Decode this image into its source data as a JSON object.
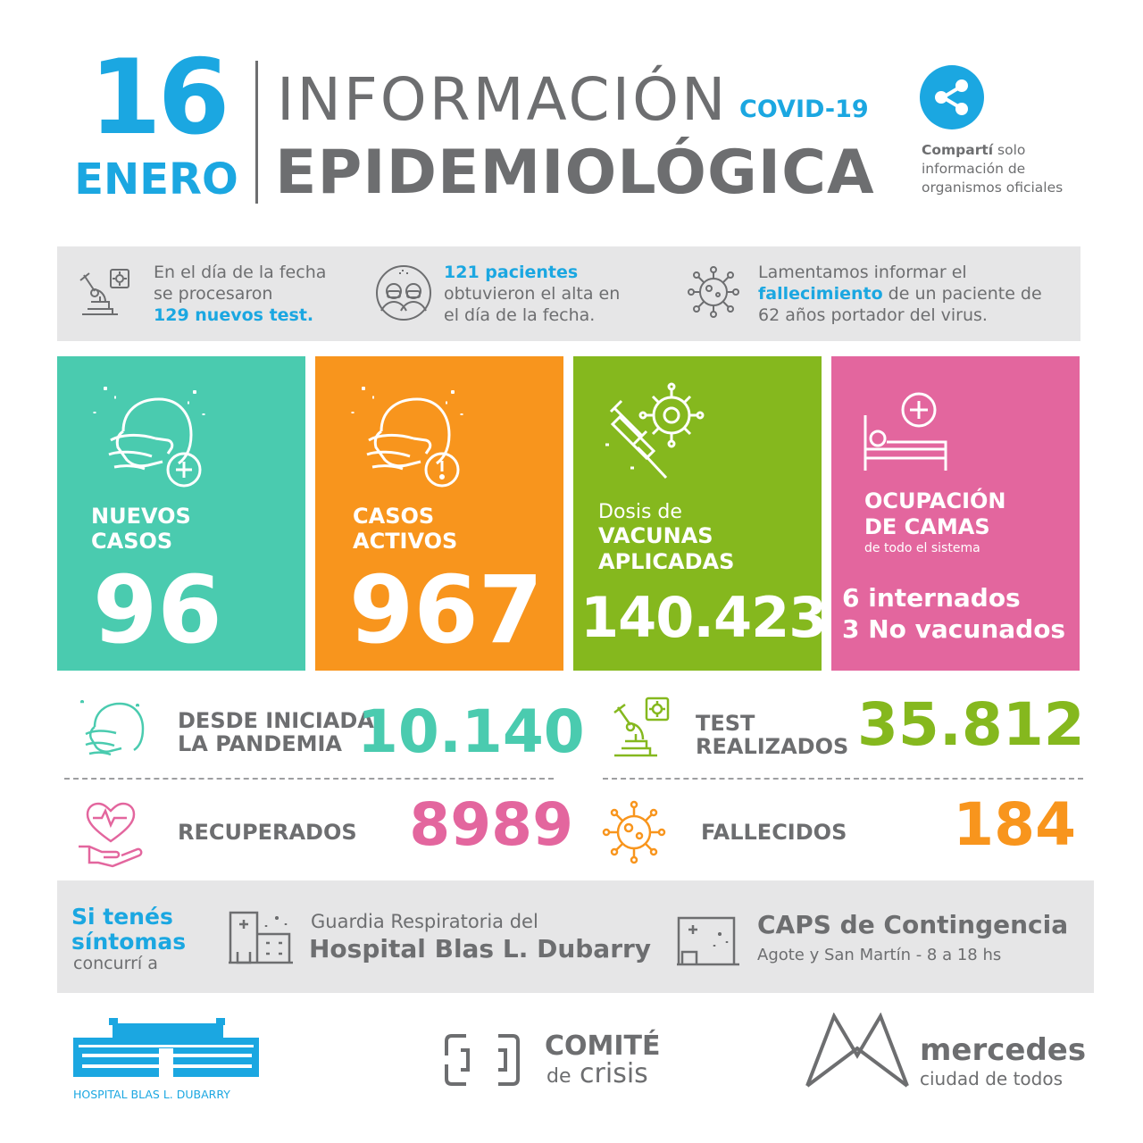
{
  "header": {
    "day": "16",
    "month": "ENERO",
    "title_line1": "INFORMACIÓN",
    "badge": "COVID-19",
    "title_line2": "EPIDEMIOLÓGICA",
    "share_bold": "Compartí",
    "share_rest1": " solo",
    "share_rest2": "información de",
    "share_rest3": "organismos oficiales"
  },
  "info": {
    "tests": {
      "l1": "En el día de la fecha",
      "l2": "se procesaron",
      "l3": "129 nuevos test."
    },
    "discharges": {
      "l1": "121 pacientes",
      "l2": "obtuvieron el alta en",
      "l3": "el día de la fecha."
    },
    "death": {
      "l1": "Lamentamos informar el",
      "l2_hl": "fallecimiento",
      "l2_rest": " de un paciente de",
      "l3": "62 años portador del virus."
    }
  },
  "tiles": {
    "new_cases": {
      "label1": "NUEVOS",
      "label2": "CASOS",
      "value": "96"
    },
    "active_cases": {
      "label1": "CASOS",
      "label2": "ACTIVOS",
      "value": "967"
    },
    "vaccines": {
      "label0": "Dosis de",
      "label1": "VACUNAS",
      "label2": "APLICADAS",
      "value": "140.423"
    },
    "beds": {
      "label1": "OCUPACIÓN",
      "label2": "DE CAMAS",
      "sub": "de todo el sistema",
      "line1": "6 internados",
      "line2": "3 No vacunados"
    }
  },
  "totals": {
    "since_pandemic": {
      "label1": "DESDE INICIADA",
      "label2": "LA PANDEMIA",
      "value": "10.140"
    },
    "tests_done": {
      "label1": "TEST",
      "label2": "REALIZADOS",
      "value": "35.812"
    },
    "recovered": {
      "label": "RECUPERADOS",
      "value": "8989"
    },
    "deceased": {
      "label": "FALLECIDOS",
      "value": "184"
    }
  },
  "symptoms": {
    "l1": "Si tenés",
    "l2": "síntomas",
    "l3": "concurrí a",
    "hospital_l1": "Guardia Respiratoria del",
    "hospital_l2": "Hospital Blas L. Dubarry",
    "caps_l1": "CAPS de Contingencia",
    "caps_l2": "Agote y San Martín - 8 a 18 hs"
  },
  "footer": {
    "hospital_name": "HOSPITAL BLAS L. DUBARRY",
    "comite_l1": "COMITÉ",
    "comite_de": "de",
    "comite_crisis": "crisis",
    "mercedes_l1": "mercedes",
    "mercedes_l2": "ciudad de todos"
  },
  "colors": {
    "blue": "#1ba7e1",
    "gray": "#6d6e70",
    "teal": "#4acbaf",
    "orange": "#f8951d",
    "green": "#85b81e",
    "pink": "#e3669e",
    "strip": "#e6e6e7"
  },
  "icons": {
    "share": "share-icon",
    "lab": "microscope-icon",
    "patients": "masked-people-icon",
    "virus": "virus-icon",
    "mask_plus": "masked-head-plus-icon",
    "mask_alert": "masked-head-alert-icon",
    "syringe": "syringe-virus-icon",
    "bed": "hospital-bed-icon",
    "heart_hand": "heart-hand-icon",
    "building": "building-icon"
  }
}
